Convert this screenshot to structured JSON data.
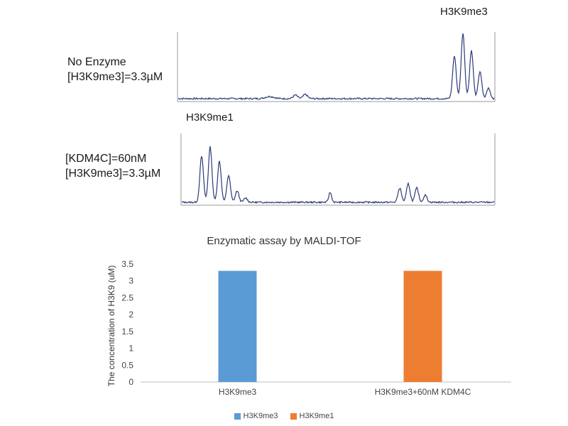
{
  "spectra": {
    "top": {
      "label_lines": [
        "No Enzyme",
        "[H3K9me3]=3.3µM"
      ],
      "peak_label": "H3K9me3",
      "stroke": "#2b3a78"
    },
    "bottom": {
      "label_lines": [
        "[KDM4C]=60nM",
        "[H3K9me3]=3.3µM"
      ],
      "peak_label": "H3K9me1",
      "stroke": "#2b3a78"
    }
  },
  "chart_data": {
    "type": "bar",
    "title": "Enzymatic assay by MALDI-TOF",
    "xlabel": "",
    "ylabel": "The concentration of H3K9 (uM)",
    "categories": [
      "H3K9me3",
      "H3K9me3+60nM KDM4C"
    ],
    "series": [
      {
        "name": "H3K9me3",
        "color": "#5b9bd5",
        "values": [
          3.3,
          0
        ]
      },
      {
        "name": "H3K9me1",
        "color": "#ed7d31",
        "values": [
          0,
          3.3
        ]
      }
    ],
    "ylim": [
      0,
      3.5
    ],
    "yticks": [
      "0",
      "0.5",
      "1",
      "1.5",
      "2",
      "2.5",
      "3",
      "3.5"
    ],
    "grid": false,
    "legend": "bottom"
  }
}
